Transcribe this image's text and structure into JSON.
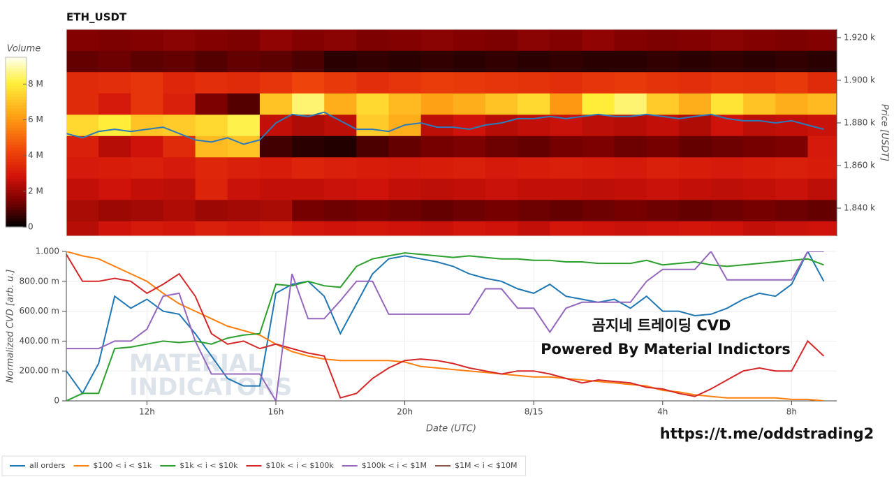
{
  "chart_data": [
    {
      "type": "heatmap",
      "title": "ETH_USDT",
      "ylabel": "Price [USDT]",
      "xlim": [
        9.5,
        33.4
      ],
      "ylim": [
        1826.9,
        1923.9
      ],
      "yticks": [
        {
          "value": 1840,
          "label": "1.840 k"
        },
        {
          "value": 1860,
          "label": "1.860 k"
        },
        {
          "value": 1880,
          "label": "1.880 k"
        },
        {
          "value": 1900,
          "label": "1.900 k"
        },
        {
          "value": 1920,
          "label": "1.920 k"
        }
      ],
      "xbins": [
        9.5,
        10.5,
        11.5,
        12.5,
        13.5,
        14.5,
        15.5,
        16.5,
        17.5,
        18.5,
        19.5,
        20.5,
        21.5,
        22.5,
        23.5,
        24.5,
        25.5,
        26.5,
        27.5,
        28.5,
        29.5,
        30.5,
        31.5,
        32.5,
        33.5
      ],
      "ybins": [
        1824,
        1834,
        1844,
        1854,
        1864,
        1874,
        1884,
        1894,
        1904,
        1914,
        1924
      ],
      "z": [
        [
          2.4,
          2.8,
          3.0,
          2.9,
          3.2,
          3.0,
          3.2,
          2.9,
          2.8,
          2.9,
          2.8,
          2.7,
          2.9,
          2.8,
          2.6,
          2.9,
          2.8,
          2.7,
          2.8,
          2.9,
          2.8,
          2.6,
          2.7,
          2.8
        ],
        [
          2.2,
          2.0,
          2.1,
          2.3,
          2.0,
          2.1,
          2.2,
          1.4,
          1.3,
          1.4,
          1.3,
          1.2,
          1.3,
          1.4,
          1.3,
          1.2,
          1.3,
          1.4,
          1.3,
          1.2,
          1.3,
          1.4,
          1.3,
          1.2
        ],
        [
          2.6,
          2.8,
          2.6,
          2.5,
          3.3,
          2.7,
          2.6,
          2.6,
          2.7,
          2.8,
          2.6,
          2.5,
          2.6,
          2.7,
          2.6,
          2.6,
          2.5,
          2.6,
          2.7,
          2.6,
          2.5,
          2.6,
          2.7,
          2.5
        ],
        [
          3.0,
          3.1,
          3.2,
          3.0,
          3.4,
          3.2,
          3.1,
          3.3,
          3.2,
          3.1,
          3.0,
          3.1,
          3.2,
          3.0,
          3.1,
          3.2,
          3.1,
          3.0,
          3.2,
          3.1,
          3.0,
          3.1,
          3.2,
          3.1
        ],
        [
          3.2,
          2.4,
          2.8,
          3.5,
          6.8,
          7.0,
          0.8,
          0.5,
          0.4,
          0.9,
          1.2,
          1.4,
          1.5,
          1.3,
          1.2,
          1.4,
          1.5,
          1.3,
          1.4,
          1.2,
          1.3,
          1.4,
          1.5,
          3.0
        ],
        [
          7.5,
          8.0,
          7.0,
          7.2,
          7.5,
          8.2,
          2.6,
          2.3,
          2.5,
          7.2,
          6.5,
          2.5,
          2.8,
          2.4,
          2.6,
          2.7,
          2.5,
          2.4,
          2.6,
          2.3,
          2.8,
          2.5,
          2.6,
          2.7
        ],
        [
          3.5,
          3.0,
          3.8,
          3.2,
          1.5,
          1.0,
          7.0,
          8.5,
          6.5,
          7.5,
          6.8,
          6.2,
          6.5,
          7.0,
          7.5,
          6.0,
          8.0,
          8.5,
          7.2,
          6.5,
          7.8,
          7.0,
          6.5,
          6.8
        ],
        [
          3.5,
          3.6,
          3.8,
          3.4,
          3.6,
          3.5,
          3.8,
          4.2,
          3.9,
          3.6,
          3.8,
          4.0,
          3.9,
          3.8,
          3.7,
          3.6,
          3.8,
          3.9,
          3.7,
          3.6,
          3.8,
          3.7,
          3.9,
          3.5
        ],
        [
          1.2,
          1.3,
          1.1,
          1.2,
          1.0,
          1.2,
          1.1,
          0.9,
          0.5,
          0.6,
          0.5,
          0.6,
          0.5,
          0.6,
          0.5,
          0.6,
          0.5,
          0.5,
          0.6,
          0.5,
          0.6,
          0.5,
          0.6,
          0.5
        ],
        [
          1.6,
          1.5,
          1.6,
          1.7,
          1.6,
          1.5,
          1.8,
          1.6,
          1.7,
          1.5,
          1.6,
          1.7,
          1.6,
          1.5,
          1.7,
          1.6,
          1.8,
          1.6,
          1.5,
          1.6,
          1.7,
          1.6,
          1.5,
          1.6
        ]
      ],
      "colorbar": {
        "label": "Volume",
        "lim": [
          0,
          9.5
        ],
        "ticks": [
          0,
          {
            "value": 2,
            "label": "2 M"
          },
          {
            "value": 4,
            "label": "4 M"
          },
          {
            "value": 6,
            "label": "6 M"
          },
          {
            "value": 8,
            "label": "8 M"
          }
        ]
      },
      "x": [
        9.5,
        10,
        10.5,
        11,
        11.5,
        12,
        12.5,
        13,
        13.5,
        14,
        14.5,
        15,
        15.5,
        16,
        16.5,
        17,
        17.5,
        18,
        18.5,
        19,
        19.5,
        20,
        20.5,
        21,
        21.5,
        22,
        22.5,
        23,
        23.5,
        24,
        24.5,
        25,
        25.5,
        26,
        26.5,
        27,
        27.5,
        28,
        28.5,
        29,
        29.5,
        30,
        30.5,
        31,
        31.5,
        32,
        32.5,
        33
      ],
      "price": {
        "color": "#2b7bba",
        "values": [
          1875,
          1873,
          1876,
          1877,
          1876,
          1877,
          1878,
          1875,
          1872,
          1871,
          1873,
          1870,
          1872,
          1880,
          1884,
          1883,
          1885,
          1881,
          1877,
          1877,
          1876,
          1879,
          1880,
          1878,
          1878,
          1877,
          1879,
          1880,
          1882,
          1882,
          1883,
          1882,
          1883,
          1884,
          1883,
          1883,
          1884,
          1883,
          1882,
          1883,
          1884,
          1882,
          1881,
          1881,
          1880,
          1881,
          1879,
          1877
        ]
      }
    },
    {
      "type": "line",
      "xlabel": "Date (UTC)",
      "ylabel": "Normalized CVD [arb. u.]",
      "xlim": [
        9.5,
        33.4
      ],
      "ylim": [
        0,
        1
      ],
      "grid": true,
      "legend": "bottom-left",
      "xticks": [
        {
          "value": 12,
          "label": "12h"
        },
        {
          "value": 16,
          "label": "16h"
        },
        {
          "value": 20,
          "label": "20h"
        },
        {
          "value": 24,
          "label": "8/15"
        },
        {
          "value": 28,
          "label": "4h"
        },
        {
          "value": 32,
          "label": "8h"
        }
      ],
      "yticks": [
        0,
        {
          "value": 0.2,
          "label": "200.00 m"
        },
        {
          "value": 0.4,
          "label": "400.00 m"
        },
        {
          "value": 0.6,
          "label": "600.00 m"
        },
        {
          "value": 0.8,
          "label": "800.00 m"
        },
        {
          "value": 1,
          "label": "1.000"
        }
      ],
      "x": [
        9.5,
        10,
        10.5,
        11,
        11.5,
        12,
        12.5,
        13,
        13.5,
        14,
        14.5,
        15,
        15.5,
        16,
        16.5,
        17,
        17.5,
        18,
        18.5,
        19,
        19.5,
        20,
        20.5,
        21,
        21.5,
        22,
        22.5,
        23,
        23.5,
        24,
        24.5,
        25,
        25.5,
        26,
        26.5,
        27,
        27.5,
        28,
        28.5,
        29,
        29.5,
        30,
        30.5,
        31,
        31.5,
        32,
        32.5,
        33
      ],
      "series": [
        {
          "name": "all orders",
          "color": "#1f77b4",
          "values": [
            0.2,
            0.05,
            0.25,
            0.7,
            0.62,
            0.68,
            0.6,
            0.58,
            0.45,
            0.3,
            0.15,
            0.1,
            0.1,
            0.72,
            0.78,
            0.8,
            0.7,
            0.45,
            0.65,
            0.85,
            0.95,
            0.97,
            0.95,
            0.93,
            0.9,
            0.85,
            0.82,
            0.8,
            0.75,
            0.72,
            0.78,
            0.7,
            0.68,
            0.66,
            0.68,
            0.62,
            0.7,
            0.6,
            0.6,
            0.57,
            0.58,
            0.62,
            0.68,
            0.72,
            0.7,
            0.78,
            1.0,
            0.8
          ]
        },
        {
          "name": "$100 < i < $1k",
          "color": "#ff7f0e",
          "values": [
            1.0,
            0.97,
            0.95,
            0.9,
            0.85,
            0.8,
            0.72,
            0.65,
            0.6,
            0.55,
            0.5,
            0.47,
            0.44,
            0.38,
            0.33,
            0.3,
            0.28,
            0.27,
            0.27,
            0.27,
            0.27,
            0.26,
            0.23,
            0.22,
            0.21,
            0.2,
            0.19,
            0.18,
            0.17,
            0.16,
            0.16,
            0.15,
            0.14,
            0.13,
            0.12,
            0.11,
            0.1,
            0.07,
            0.06,
            0.04,
            0.03,
            0.02,
            0.02,
            0.02,
            0.02,
            0.01,
            0.01,
            0.0
          ]
        },
        {
          "name": "$1k < i < $10k",
          "color": "#2ca02c",
          "values": [
            0,
            0.05,
            0.05,
            0.35,
            0.36,
            0.38,
            0.4,
            0.39,
            0.4,
            0.38,
            0.42,
            0.44,
            0.45,
            0.78,
            0.77,
            0.8,
            0.77,
            0.76,
            0.9,
            0.95,
            0.97,
            0.99,
            0.98,
            0.97,
            0.96,
            0.97,
            0.96,
            0.95,
            0.95,
            0.94,
            0.94,
            0.93,
            0.93,
            0.92,
            0.92,
            0.92,
            0.94,
            0.91,
            0.92,
            0.93,
            0.91,
            0.9,
            0.91,
            0.92,
            0.93,
            0.94,
            0.95,
            0.91
          ]
        },
        {
          "name": "$10k < i < $100k",
          "color": "#d62728",
          "values": [
            0.98,
            0.8,
            0.8,
            0.82,
            0.8,
            0.72,
            0.78,
            0.85,
            0.7,
            0.45,
            0.38,
            0.4,
            0.35,
            0.38,
            0.35,
            0.32,
            0.3,
            0.02,
            0.05,
            0.15,
            0.22,
            0.27,
            0.28,
            0.27,
            0.25,
            0.22,
            0.2,
            0.18,
            0.2,
            0.2,
            0.18,
            0.15,
            0.12,
            0.14,
            0.13,
            0.12,
            0.09,
            0.08,
            0.05,
            0.03,
            0.08,
            0.14,
            0.2,
            0.22,
            0.2,
            0.2,
            0.4,
            0.3
          ]
        },
        {
          "name": "$100k < i < $1M",
          "color": "#9467bd",
          "values": [
            0.35,
            0.35,
            0.35,
            0.4,
            0.4,
            0.48,
            0.7,
            0.72,
            0.4,
            0.18,
            0.18,
            0.18,
            0.18,
            0.0,
            0.85,
            0.55,
            0.55,
            0.67,
            0.8,
            0.8,
            0.58,
            0.58,
            0.58,
            0.58,
            0.58,
            0.58,
            0.75,
            0.75,
            0.62,
            0.62,
            0.46,
            0.62,
            0.66,
            0.66,
            0.66,
            0.66,
            0.8,
            0.88,
            0.88,
            0.88,
            1.0,
            0.81,
            0.81,
            0.81,
            0.81,
            0.81,
            1.0,
            1.0
          ]
        },
        {
          "name": "$1M < i < $10M",
          "color": "#8c564b",
          "values": [
            null,
            null,
            null,
            null,
            null,
            null,
            null,
            null,
            null,
            null,
            null,
            null,
            null,
            null,
            null,
            null,
            null,
            null,
            null,
            null,
            null,
            null,
            null,
            null,
            null,
            null,
            null,
            null,
            null,
            null,
            null,
            null,
            null,
            null,
            null,
            null,
            null,
            null,
            null,
            null,
            null,
            null,
            null,
            null,
            null,
            null,
            null,
            null
          ]
        }
      ],
      "watermark": [
        "MATERIAL",
        "INDICATORS"
      ],
      "annotations": [
        "곰지네 트레이딩 CVD",
        "Powered By Material Indictors",
        "https://t.me/oddstrading2"
      ]
    }
  ]
}
